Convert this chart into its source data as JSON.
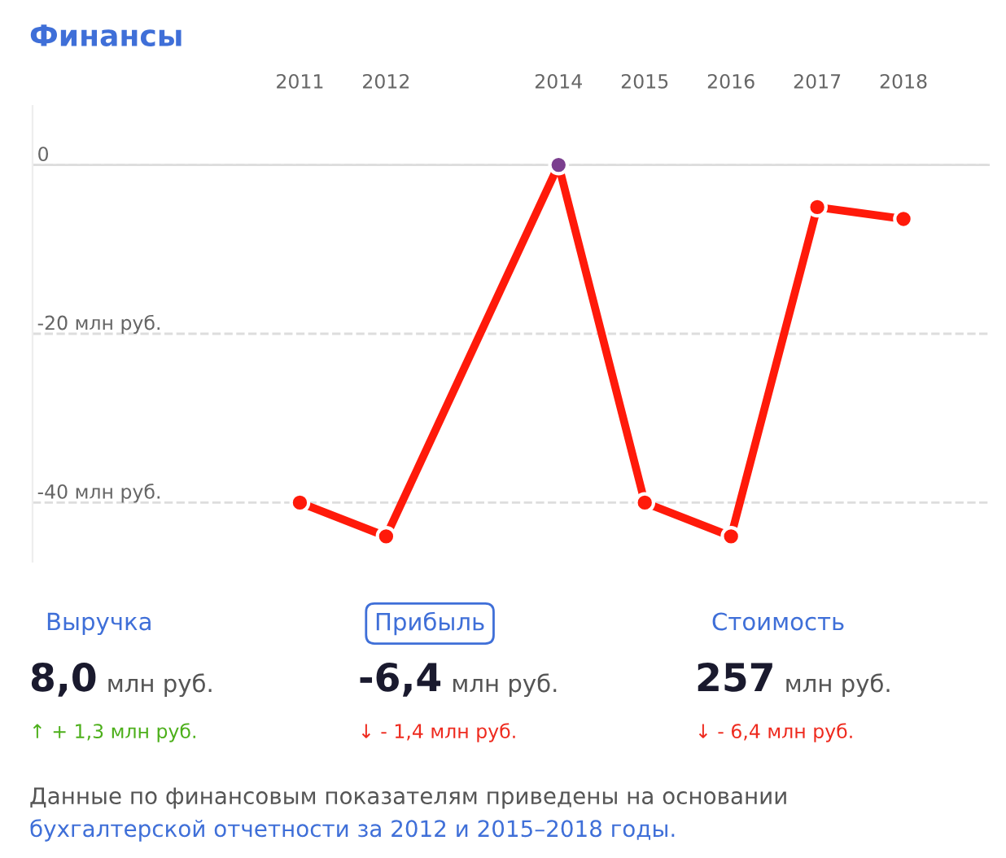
{
  "chart_data": [
    {
      "type": "line",
      "title": "Финансы",
      "x": [
        2011,
        2012,
        2014,
        2015,
        2016,
        2017,
        2018
      ],
      "series": [
        {
          "color": "#ff1a0a",
          "colors": [
            "#ff1a0a",
            "#ff1a0a",
            "#7b3f8f",
            "#ff1a0a",
            "#ff1a0a",
            "#ff1a0a",
            "#ff1a0a"
          ],
          "values": [
            -40,
            -44,
            0,
            -40,
            -44,
            -5.0,
            -6.4
          ]
        }
      ],
      "xlim": [
        2007.9,
        2019
      ],
      "xticks": [
        2011,
        2012,
        2014,
        2015,
        2016,
        2017,
        2018
      ],
      "ylim": [
        -47,
        7
      ],
      "yticks": [
        0,
        {
          "value": -20,
          "label": "-20 млн руб."
        },
        {
          "value": -40,
          "label": "-40 млн руб."
        }
      ],
      "ref_lines": [
        {
          "axis": "y",
          "value": 0,
          "color": "#dddddd",
          "line_style": "solid"
        }
      ],
      "grid": "y",
      "line_style": "solid",
      "marker": "circle"
    },
    {
      "type": "other",
      "annotations": [
        "Выручка",
        "8,0",
        "млн руб.",
        "↑ + 1,3 млн руб.",
        "Прибыль",
        "-6,4",
        "млн руб.",
        "↓ - 1,4 млн руб.",
        "Стоимость",
        "257",
        "млн руб.",
        "↓ - 6,4 млн руб.",
        "Данные по финансовым показателям приведены на основании",
        "бухгалтерской отчетности за 2012 и 2015–2018 годы."
      ]
    }
  ]
}
